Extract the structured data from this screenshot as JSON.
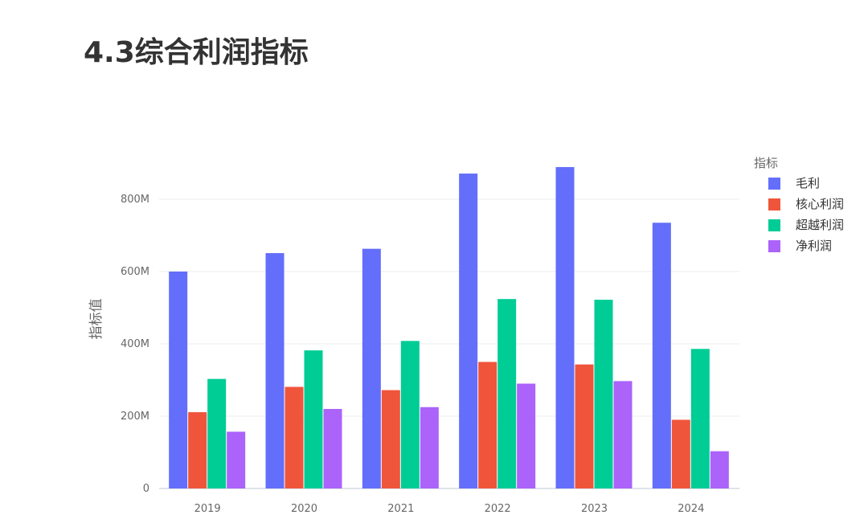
{
  "page": {
    "title": "4.3综合利润指标"
  },
  "chart_data": {
    "type": "bar",
    "categories": [
      "2019",
      "2020",
      "2021",
      "2022",
      "2023",
      "2024"
    ],
    "series": [
      {
        "name": "毛利",
        "color": "#636efa",
        "values": [
          600,
          651,
          663,
          871,
          889,
          735
        ]
      },
      {
        "name": "核心利润",
        "color": "#ef553b",
        "values": [
          211,
          281,
          272,
          350,
          343,
          190
        ]
      },
      {
        "name": "超越利润",
        "color": "#00cc96",
        "values": [
          303,
          382,
          408,
          524,
          522,
          386
        ]
      },
      {
        "name": "净利润",
        "color": "#ab63fa",
        "values": [
          157,
          220,
          225,
          290,
          297,
          103
        ]
      }
    ],
    "unit": "M",
    "ylabel": "指标值",
    "xlabel": "",
    "ylim": [
      0,
      880
    ],
    "yticks": [
      0,
      200,
      400,
      600,
      800
    ],
    "ytick_labels": [
      "0",
      "200M",
      "400M",
      "600M",
      "800M"
    ],
    "legend_title": "指标",
    "legend_position": "right",
    "grid": true
  }
}
